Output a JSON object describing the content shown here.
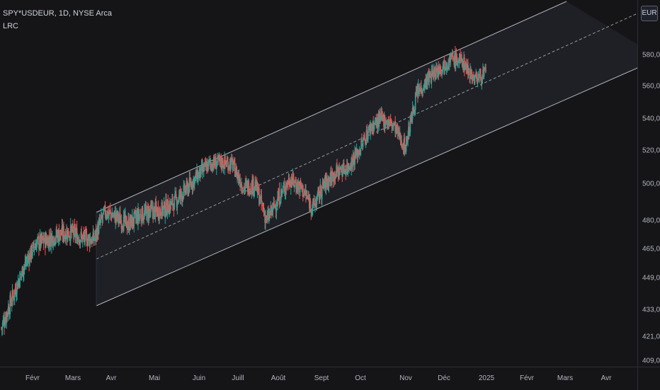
{
  "legend": {
    "symbol": "SPY*USDEUR, 1D, NYSE Arca",
    "indicator": "LRC"
  },
  "currency_button": "EUR",
  "colors": {
    "up": "#26a69a",
    "down": "#ef5350",
    "channel_line": "#b2b5be",
    "channel_mid": "#9598a1",
    "channel_fill": "#2a2e39"
  },
  "chart_data": {
    "type": "candlestick",
    "price_ticks": [
      "580,00",
      "560,00",
      "540,00",
      "520,00",
      "500,00",
      "480,00",
      "465,00",
      "449,00",
      "433,00",
      "421,00",
      "409,00"
    ],
    "price_tick_values": [
      580,
      560,
      540,
      520,
      500,
      480,
      465,
      449,
      433,
      421,
      409
    ],
    "time_ticks": [
      "Févr",
      "Mars",
      "Avr",
      "Mai",
      "Juin",
      "Juill",
      "Août",
      "Sept",
      "Oct",
      "Nov",
      "Déc",
      "2025",
      "Févr",
      "Mars",
      "Avr"
    ],
    "grid": false,
    "close_series": [
      {
        "date": "2023-01",
        "value": 425
      },
      {
        "date": "2023-02",
        "value": 440
      },
      {
        "date": "2023-03",
        "value": 456
      },
      {
        "date": "2023-04",
        "value": 468
      },
      {
        "date": "2023-05",
        "value": 470
      },
      {
        "date": "2023-06",
        "value": 473
      },
      {
        "date": "2023-07",
        "value": 474
      },
      {
        "date": "2023-08",
        "value": 471
      },
      {
        "date": "2023-09",
        "value": 470
      },
      {
        "date": "2023-10",
        "value": 485
      },
      {
        "date": "2023-11",
        "value": 482
      },
      {
        "date": "2023-12",
        "value": 478
      },
      {
        "date": "2024-01",
        "value": 483
      },
      {
        "date": "2024-02",
        "value": 485
      },
      {
        "date": "2024-03",
        "value": 486
      },
      {
        "date": "2024-04",
        "value": 490
      },
      {
        "date": "2024-05",
        "value": 497
      },
      {
        "date": "2024-06",
        "value": 505
      },
      {
        "date": "2024-07",
        "value": 512
      },
      {
        "date": "2024-08",
        "value": 513
      },
      {
        "date": "2024-09",
        "value": 512
      },
      {
        "date": "2024-10",
        "value": 498
      },
      {
        "date": "2024-11",
        "value": 500
      },
      {
        "date": "2024-12",
        "value": 480
      },
      {
        "date": "2025-01",
        "value": 492
      },
      {
        "date": "2025-02",
        "value": 503
      },
      {
        "date": "2025-03",
        "value": 498
      },
      {
        "date": "2025-04",
        "value": 487
      },
      {
        "date": "2025-05",
        "value": 500
      },
      {
        "date": "2025-06",
        "value": 507
      },
      {
        "date": "2025-07",
        "value": 510
      },
      {
        "date": "2025-08",
        "value": 520
      },
      {
        "date": "2025-09",
        "value": 535
      },
      {
        "date": "2025-10",
        "value": 540
      },
      {
        "date": "2025-11",
        "value": 536
      },
      {
        "date": "2025-12",
        "value": 522
      },
      {
        "date": "2026-01",
        "value": 555
      },
      {
        "date": "2026-02",
        "value": 565
      },
      {
        "date": "2026-03",
        "value": 572
      },
      {
        "date": "2026-04",
        "value": 578
      },
      {
        "date": "2026-05",
        "value": 576
      },
      {
        "date": "2026-06",
        "value": 565
      },
      {
        "date": "2026-07",
        "value": 568
      }
    ]
  }
}
